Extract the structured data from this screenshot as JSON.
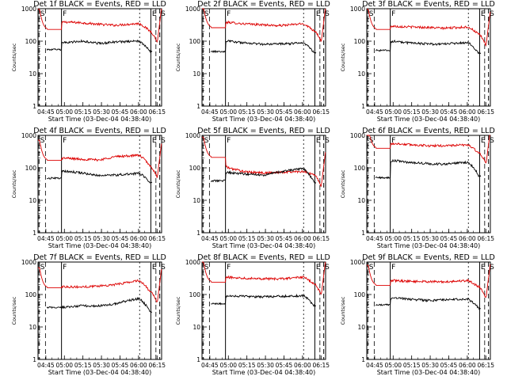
{
  "chart_data": {
    "type": "line",
    "y_scale": "log",
    "ylim": [
      1,
      1000
    ],
    "ytick_labels": [
      "1",
      "10",
      "100",
      "1000"
    ],
    "xlim_minutes": [
      0,
      100
    ],
    "xtick_minutes": [
      6.33,
      21.33,
      36.33,
      51.33,
      66.33,
      81.33,
      96.33
    ],
    "xtick_labels": [
      "04:45",
      "05:00",
      "05:15",
      "05:30",
      "05:45",
      "06:00",
      "06:15"
    ],
    "xlabel": "Start Time (03-Dec-04 04:38:40)",
    "ylabel": "Counts/sec",
    "event_markers": {
      "labels": [
        "S",
        "F",
        "E",
        "S"
      ],
      "minutes": [
        0.8,
        19.0,
        91.3,
        98.5
      ]
    },
    "legend": "BLACK = Events, RED = LLD",
    "series_colors": {
      "Events": "#000000",
      "LLD": "#dd0000"
    },
    "series": [
      {
        "title": "Det 1f BLACK = Events, RED = LLD",
        "events": [
          55,
          90,
          100,
          85,
          95,
          100,
          48
        ],
        "lld": [
          230,
          390,
          370,
          330,
          310,
          350,
          200
        ]
      },
      {
        "title": "Det 2f BLACK = Events, RED = LLD",
        "events": [
          48,
          100,
          88,
          80,
          82,
          88,
          45
        ],
        "lld": [
          260,
          380,
          340,
          320,
          300,
          345,
          210
        ]
      },
      {
        "title": "Det 3f BLACK = Events, RED = LLD",
        "events": [
          52,
          100,
          88,
          82,
          82,
          90,
          42
        ],
        "lld": [
          230,
          290,
          275,
          265,
          250,
          275,
          160
        ]
      },
      {
        "title": "Det 4f BLACK = Events, RED = LLD",
        "events": [
          48,
          80,
          70,
          58,
          60,
          68,
          35
        ],
        "lld": [
          170,
          200,
          185,
          175,
          220,
          245,
          110
        ]
      },
      {
        "title": "Det 5f BLACK = Events, RED = LLD",
        "events": [
          40,
          72,
          65,
          60,
          75,
          95,
          35
        ],
        "lld": [
          210,
          100,
          75,
          70,
          72,
          78,
          60
        ]
      },
      {
        "title": "Det 6f BLACK = Events, RED = LLD",
        "events": [
          50,
          170,
          145,
          135,
          130,
          148,
          55
        ],
        "lld": [
          400,
          560,
          520,
          480,
          480,
          510,
          280
        ]
      },
      {
        "title": "Det 7f BLACK = Events, RED = LLD",
        "events": [
          40,
          40,
          45,
          45,
          52,
          75,
          28
        ],
        "lld": [
          160,
          175,
          170,
          185,
          200,
          270,
          120
        ]
      },
      {
        "title": "Det 8f BLACK = Events, RED = LLD",
        "events": [
          52,
          92,
          88,
          85,
          88,
          92,
          45
        ],
        "lld": [
          240,
          340,
          320,
          310,
          300,
          345,
          210
        ]
      },
      {
        "title": "Det 9f BLACK = Events, RED = LLD",
        "events": [
          48,
          80,
          72,
          65,
          68,
          72,
          38
        ],
        "lld": [
          190,
          270,
          255,
          250,
          245,
          270,
          170
        ]
      }
    ]
  }
}
